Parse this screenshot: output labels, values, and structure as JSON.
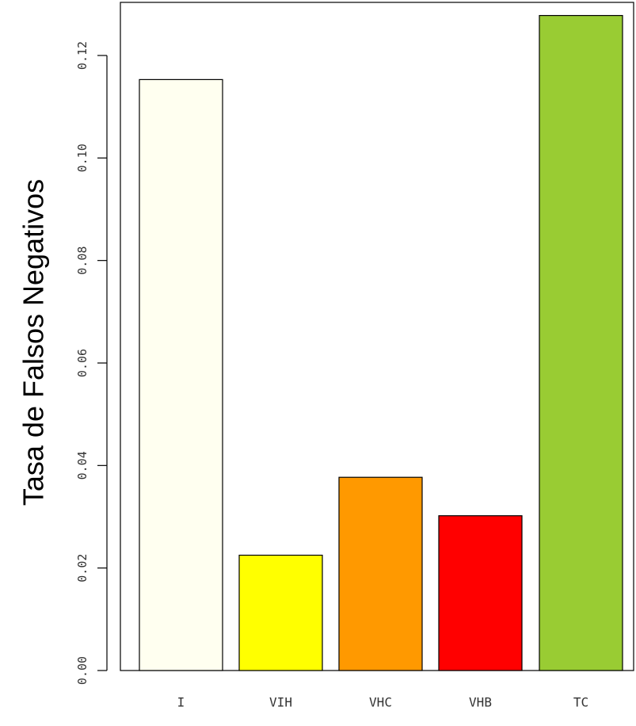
{
  "chart_data": {
    "type": "bar",
    "title": "",
    "xlabel": "",
    "ylabel": "Tasa de Falsos Negativos",
    "categories": [
      "I",
      "VIH",
      "VHC",
      "VHB",
      "TC"
    ],
    "values": [
      0.1153,
      0.0225,
      0.0377,
      0.0302,
      0.1278
    ],
    "colors": [
      "#fffff0",
      "#ffff00",
      "#ff9900",
      "#ff0000",
      "#99cc33"
    ],
    "ylim": [
      0,
      0.13
    ],
    "yticks": [
      0.0,
      0.02,
      0.04,
      0.06,
      0.08,
      0.1,
      0.12
    ],
    "ytick_labels": [
      "0.00",
      "0.02",
      "0.04",
      "0.06",
      "0.08",
      "0.10",
      "0.12"
    ],
    "grid": false,
    "legend": "none"
  }
}
